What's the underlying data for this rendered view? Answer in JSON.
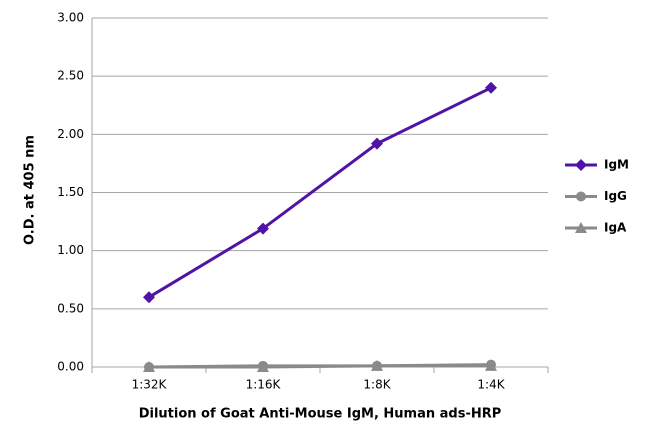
{
  "chart_data": {
    "type": "line",
    "x_label": "Dilution of Goat Anti-Mouse IgM, Human ads-HRP",
    "y_label": "O.D. at 405 nm",
    "categories": [
      "1:32K",
      "1:16K",
      "1:8K",
      "1:4K"
    ],
    "series": [
      {
        "name": "IgM",
        "color": "#4f14a5",
        "marker": "diamond",
        "values": [
          0.6,
          1.19,
          1.92,
          2.4
        ]
      },
      {
        "name": "IgG",
        "color": "#8a8a8a",
        "marker": "circle",
        "values": [
          0.0,
          0.01,
          0.01,
          0.02
        ]
      },
      {
        "name": "IgA",
        "color": "#8a8a8a",
        "marker": "triangle",
        "values": [
          0.0,
          0.0,
          0.01,
          0.01
        ]
      }
    ],
    "ylim": [
      0,
      3
    ],
    "yticks": [
      {
        "value": 0,
        "label": "0.00"
      },
      {
        "value": 0.5,
        "label": "0.50"
      },
      {
        "value": 1,
        "label": "1.00"
      },
      {
        "value": 1.5,
        "label": "1.50"
      },
      {
        "value": 2,
        "label": "2.00"
      },
      {
        "value": 2.5,
        "label": "2.50"
      },
      {
        "value": 3,
        "label": "3.00"
      }
    ],
    "grid": true,
    "legend": "right"
  }
}
